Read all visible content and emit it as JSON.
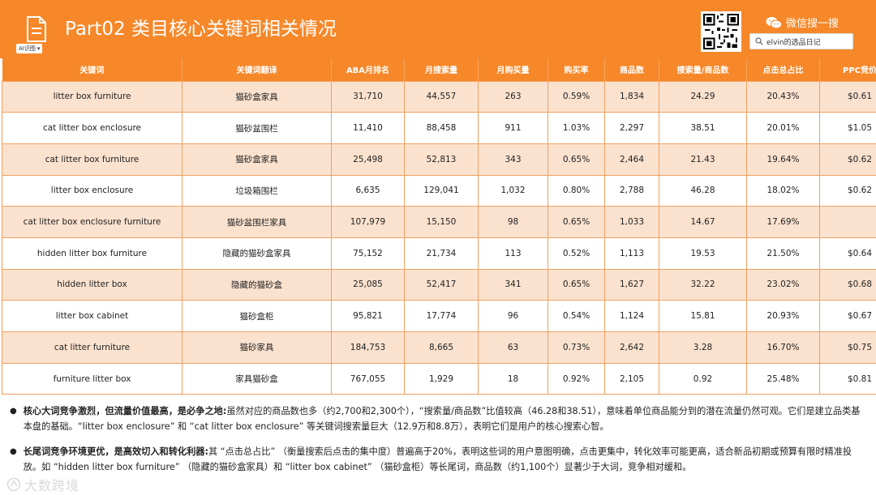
{
  "header": {
    "title": "Part02 类目核心关键词相关情况",
    "ai_chip": "AI识图",
    "wechat_label": "微信搜一搜",
    "search_text": "elvin的选品日记"
  },
  "table": {
    "columns": [
      "关键词",
      "关键词翻译",
      "ABA月排名",
      "月搜索量",
      "月购买量",
      "购买率",
      "商品数",
      "搜索量/商品数",
      "点击总占比",
      "PPC竞价"
    ],
    "rows": [
      [
        "litter box furniture",
        "猫砂盒家具",
        "31,710",
        "44,557",
        "263",
        "0.59%",
        "1,834",
        "24.29",
        "20.43%",
        "$0.61"
      ],
      [
        "cat litter box enclosure",
        "猫砂盆围栏",
        "11,410",
        "88,458",
        "911",
        "1.03%",
        "2,297",
        "38.51",
        "20.01%",
        "$1.05"
      ],
      [
        "cat litter box furniture",
        "猫砂盒家具",
        "25,498",
        "52,813",
        "343",
        "0.65%",
        "2,464",
        "21.43",
        "19.64%",
        "$0.62"
      ],
      [
        "litter box enclosure",
        "垃圾箱围栏",
        "6,635",
        "129,041",
        "1,032",
        "0.80%",
        "2,788",
        "46.28",
        "18.02%",
        "$0.62"
      ],
      [
        "cat litter box enclosure furniture",
        "猫砂盆围栏家具",
        "107,979",
        "15,150",
        "98",
        "0.65%",
        "1,033",
        "14.67",
        "17.69%",
        ""
      ],
      [
        "hidden litter box furniture",
        "隐藏的猫砂盒家具",
        "75,152",
        "21,734",
        "113",
        "0.52%",
        "1,113",
        "19.53",
        "21.50%",
        "$0.64"
      ],
      [
        "hidden litter box",
        "隐藏的猫砂盒",
        "25,085",
        "52,417",
        "341",
        "0.65%",
        "1,627",
        "32.22",
        "23.02%",
        "$0.68"
      ],
      [
        "litter box cabinet",
        "猫砂盒柜",
        "95,821",
        "17,774",
        "96",
        "0.54%",
        "1,124",
        "15.81",
        "20.93%",
        "$0.67"
      ],
      [
        "cat litter furniture",
        "猫砂家具",
        "184,753",
        "8,665",
        "63",
        "0.73%",
        "2,642",
        "3.28",
        "16.70%",
        "$0.75"
      ],
      [
        "furniture litter box",
        "家具猫砂盒",
        "767,055",
        "1,929",
        "18",
        "0.92%",
        "2,105",
        "0.92",
        "25.48%",
        "$0.81"
      ]
    ]
  },
  "notes": [
    {
      "bold": "核心大词竞争激烈，但流量价值最高，是必争之地:",
      "text": "虽然对应的商品数也多（约2,700和2,300个），“搜索量/商品数”比值较高（46.28和38.51），意味着单位商品能分到的潜在流量仍然可观。它们是建立品类基本盘的基础。“litter box enclosure” 和 “cat litter box enclosure” 等关键词搜索量巨大（12.9万和8.8万），表明它们是用户的核心搜索心智。"
    },
    {
      "bold": "长尾词竞争环境更优，是高效切入和转化利器:",
      "text": "其 “点击总占比” （衡量搜索后点击的集中度）普遍高于20%，表明这些词的用户意图明确，点击更集中，转化效率可能更高，适合新品初期或预算有限时精准投放。如 “hidden litter box furniture” （隐藏的猫砂盒家具）和 “litter box cabinet” （猫砂盒柜）等长尾词，商品数（约1,100个）显著少于大词，竞争相对缓和。"
    }
  ],
  "watermark": "大数跨境",
  "icons": {
    "doc": "document-icon",
    "qr": "qr-code-icon",
    "wechat": "wechat-icon",
    "search": "search-icon",
    "watermark": "watermark-logo-icon"
  },
  "colors": {
    "accent": "#f6882a",
    "row_tint": "#fbe2cf"
  }
}
